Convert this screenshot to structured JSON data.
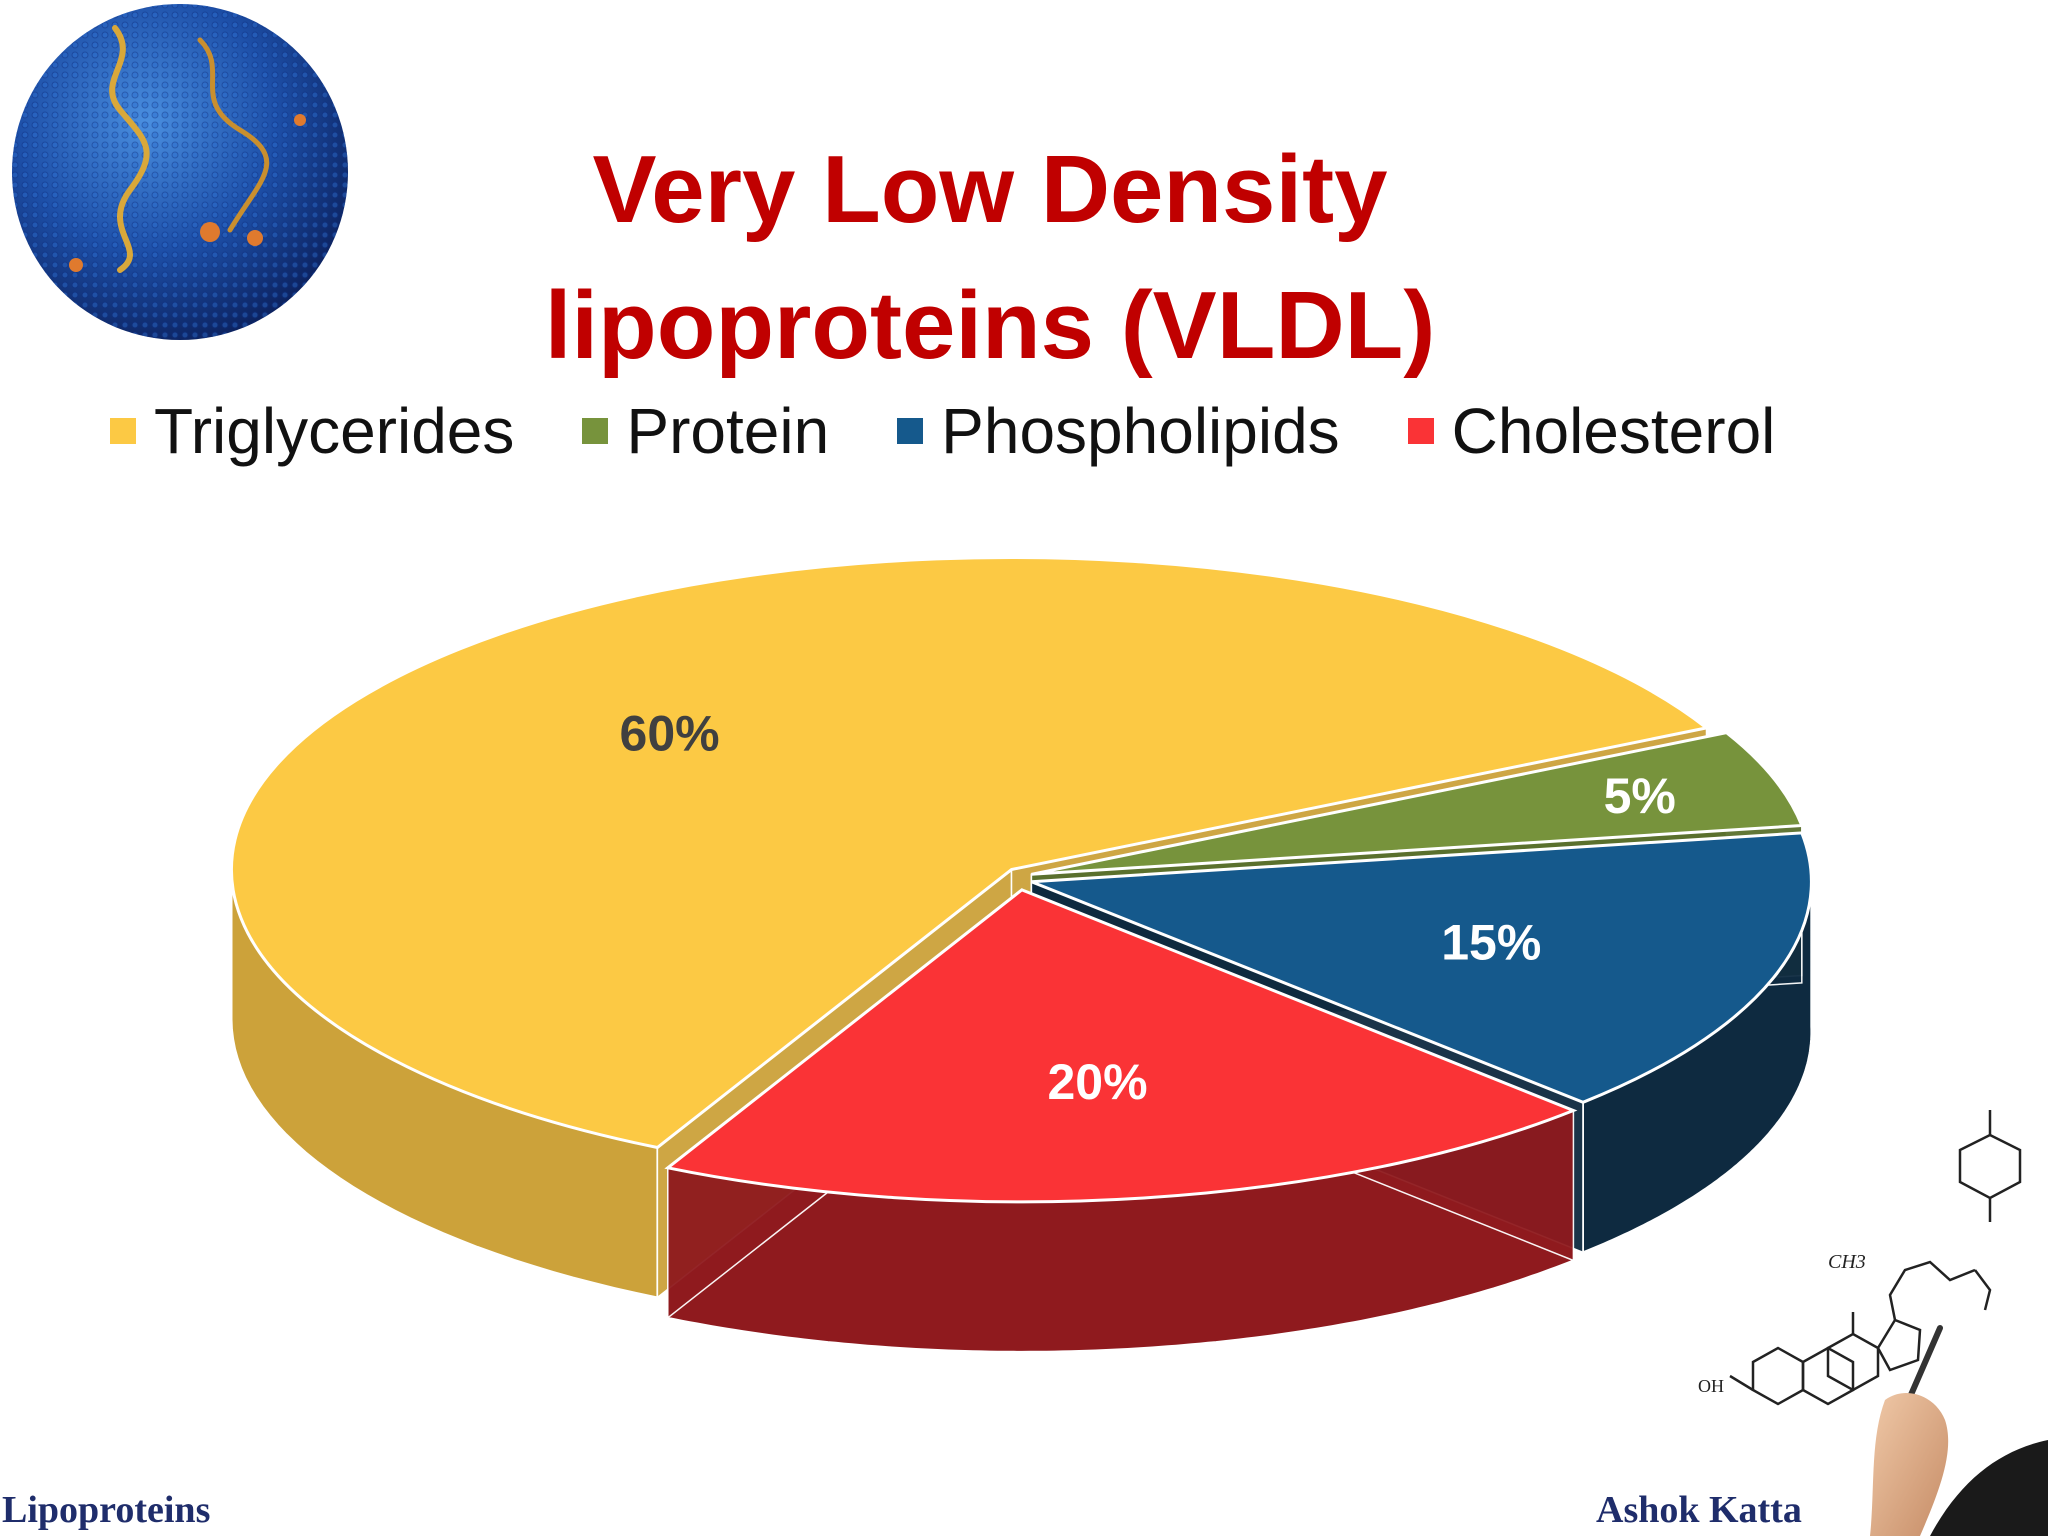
{
  "title_line1": "Very Low Density",
  "title_line2": "lipoproteins (VLDL)",
  "footer_left": "Lipoproteins",
  "footer_right": "Ashok Katta",
  "molecule_label_ch3": "CH3",
  "molecule_label_oh": "OH",
  "chart_data": {
    "type": "pie",
    "title": "Very Low Density lipoproteins (VLDL)",
    "legend_placement": "top",
    "slices": [
      {
        "name": "Triglycerides",
        "value": 60,
        "label": "60%",
        "color": "#fcc944",
        "side": "#cca23a",
        "label_color": "#404040"
      },
      {
        "name": "Protein",
        "value": 5,
        "label": "5%",
        "color": "#77933c",
        "side": "#5a702d",
        "label_color": "#ffffff"
      },
      {
        "name": "Phospholipids",
        "value": 15,
        "label": "15%",
        "color": "#15598c",
        "side": "#0e2a40",
        "label_color": "#ffffff"
      },
      {
        "name": "Cholesterol",
        "value": 20,
        "label": "20%",
        "color": "#fa3336",
        "side": "#8f1a1e",
        "label_color": "#ffffff"
      }
    ]
  }
}
